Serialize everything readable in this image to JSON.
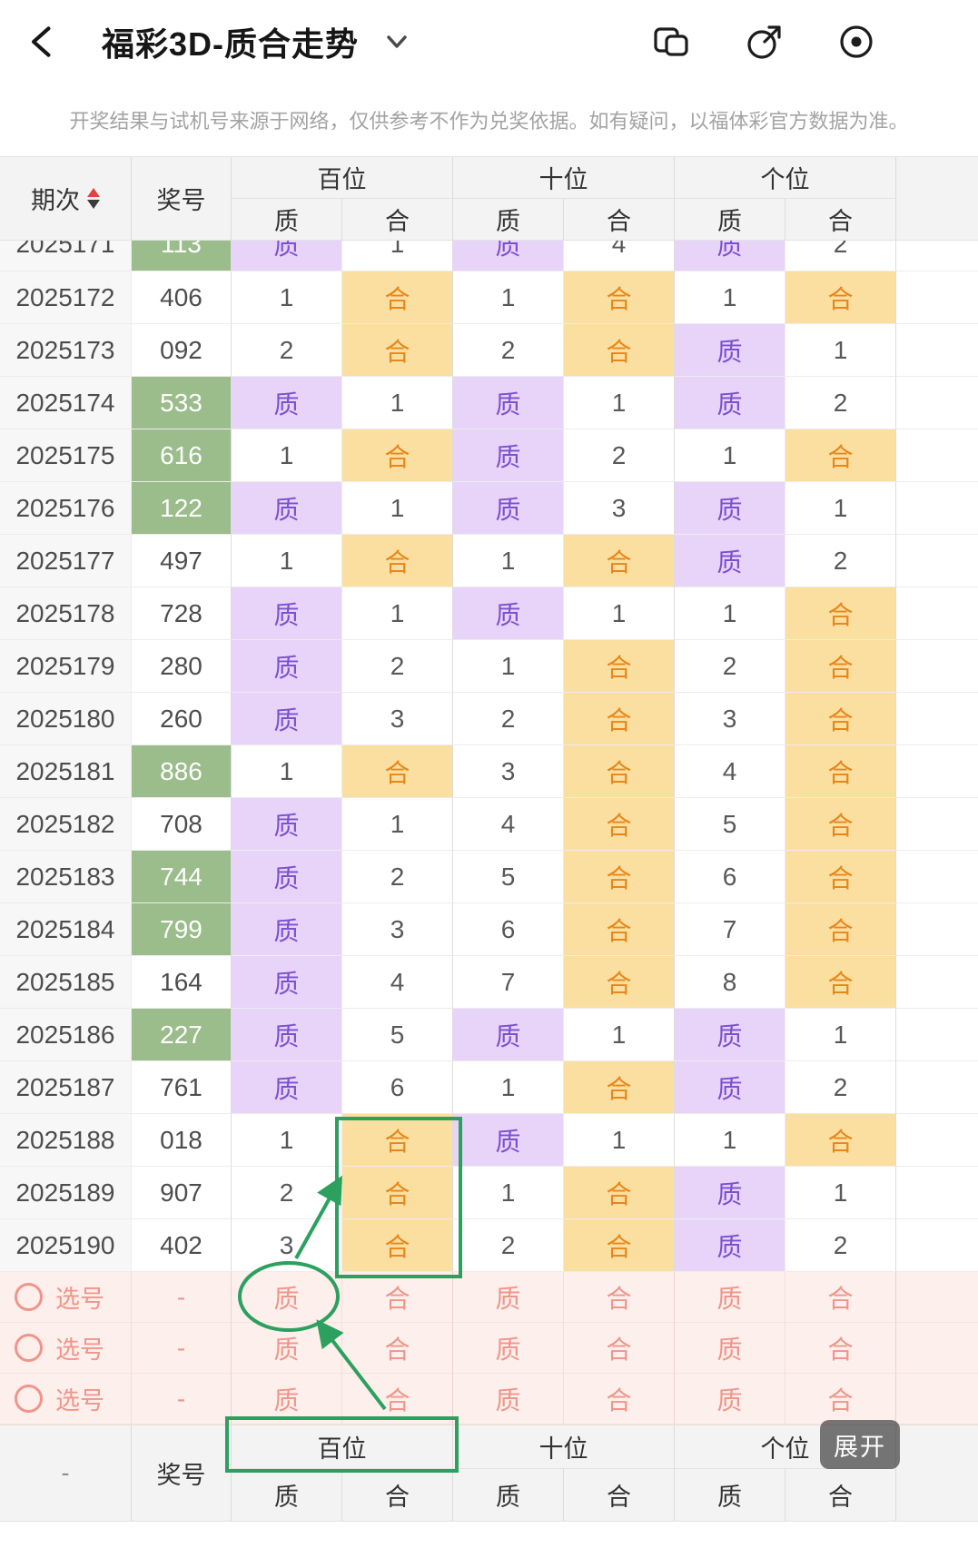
{
  "colors": {
    "zhi_bg": "#E7D4F8",
    "zhi_text": "#7B50D1",
    "he_bg": "#FBDFA0",
    "he_text": "#E8861A",
    "green_bg": "#9BBC8B",
    "pick_bg": "#FDEFEC",
    "pick_text": "#F0958A",
    "header_bg": "#F3F3F3",
    "period_bg": "#F7F7F7",
    "grid": "#ECECEC",
    "grid_strong": "#DCDCDC",
    "annotation": "#2BA05F",
    "sort_up": "#E0443A",
    "sort_down": "#3A3A3A",
    "expand_bg": "rgba(66,66,66,0.72)"
  },
  "nav": {
    "title": "福彩3D-质合走势",
    "expand_label": "展开"
  },
  "disclaimer": "开奖结果与试机号来源于网络，仅供参考不作为兑奖依据。如有疑问，以福体彩官方数据为准。",
  "table": {
    "headers": {
      "period": "期次",
      "number": "奖号",
      "groups": [
        "百位",
        "十位",
        "个位"
      ],
      "subs": [
        "质",
        "合"
      ]
    },
    "rows": [
      {
        "period": "2025171",
        "number": "113",
        "green": true,
        "clipped": true,
        "cells": [
          "质",
          "1",
          "质",
          "4",
          "质",
          "2"
        ]
      },
      {
        "period": "2025172",
        "number": "406",
        "green": false,
        "cells": [
          "1",
          "合",
          "1",
          "合",
          "1",
          "合"
        ]
      },
      {
        "period": "2025173",
        "number": "092",
        "green": false,
        "cells": [
          "2",
          "合",
          "2",
          "合",
          "质",
          "1"
        ]
      },
      {
        "period": "2025174",
        "number": "533",
        "green": true,
        "cells": [
          "质",
          "1",
          "质",
          "1",
          "质",
          "2"
        ]
      },
      {
        "period": "2025175",
        "number": "616",
        "green": true,
        "cells": [
          "1",
          "合",
          "质",
          "2",
          "1",
          "合"
        ]
      },
      {
        "period": "2025176",
        "number": "122",
        "green": true,
        "cells": [
          "质",
          "1",
          "质",
          "3",
          "质",
          "1"
        ]
      },
      {
        "period": "2025177",
        "number": "497",
        "green": false,
        "cells": [
          "1",
          "合",
          "1",
          "合",
          "质",
          "2"
        ]
      },
      {
        "period": "2025178",
        "number": "728",
        "green": false,
        "cells": [
          "质",
          "1",
          "质",
          "1",
          "1",
          "合"
        ]
      },
      {
        "period": "2025179",
        "number": "280",
        "green": false,
        "cells": [
          "质",
          "2",
          "1",
          "合",
          "2",
          "合"
        ]
      },
      {
        "period": "2025180",
        "number": "260",
        "green": false,
        "cells": [
          "质",
          "3",
          "2",
          "合",
          "3",
          "合"
        ]
      },
      {
        "period": "2025181",
        "number": "886",
        "green": true,
        "cells": [
          "1",
          "合",
          "3",
          "合",
          "4",
          "合"
        ]
      },
      {
        "period": "2025182",
        "number": "708",
        "green": false,
        "cells": [
          "质",
          "1",
          "4",
          "合",
          "5",
          "合"
        ]
      },
      {
        "period": "2025183",
        "number": "744",
        "green": true,
        "cells": [
          "质",
          "2",
          "5",
          "合",
          "6",
          "合"
        ]
      },
      {
        "period": "2025184",
        "number": "799",
        "green": true,
        "cells": [
          "质",
          "3",
          "6",
          "合",
          "7",
          "合"
        ]
      },
      {
        "period": "2025185",
        "number": "164",
        "green": false,
        "cells": [
          "质",
          "4",
          "7",
          "合",
          "8",
          "合"
        ]
      },
      {
        "period": "2025186",
        "number": "227",
        "green": true,
        "cells": [
          "质",
          "5",
          "质",
          "1",
          "质",
          "1"
        ]
      },
      {
        "period": "2025187",
        "number": "761",
        "green": false,
        "cells": [
          "质",
          "6",
          "1",
          "合",
          "质",
          "2"
        ]
      },
      {
        "period": "2025188",
        "number": "018",
        "green": false,
        "cells": [
          "1",
          "合",
          "质",
          "1",
          "1",
          "合"
        ]
      },
      {
        "period": "2025189",
        "number": "907",
        "green": false,
        "cells": [
          "2",
          "合",
          "1",
          "合",
          "质",
          "1"
        ]
      },
      {
        "period": "2025190",
        "number": "402",
        "green": false,
        "cells": [
          "3",
          "合",
          "2",
          "合",
          "质",
          "2"
        ]
      }
    ],
    "pick_label": "选号",
    "pick_dash": "-",
    "pick_rows": [
      [
        "质",
        "合",
        "质",
        "合",
        "质",
        "合"
      ],
      [
        "质",
        "合",
        "质",
        "合",
        "质",
        "合"
      ],
      [
        "质",
        "合",
        "质",
        "合",
        "质",
        "合"
      ]
    ],
    "footer": {
      "period": "-",
      "number": "奖号",
      "groups": [
        "百位",
        "十位",
        "个位"
      ],
      "subs": [
        "质",
        "合",
        "质",
        "合",
        "质",
        "合"
      ]
    }
  }
}
